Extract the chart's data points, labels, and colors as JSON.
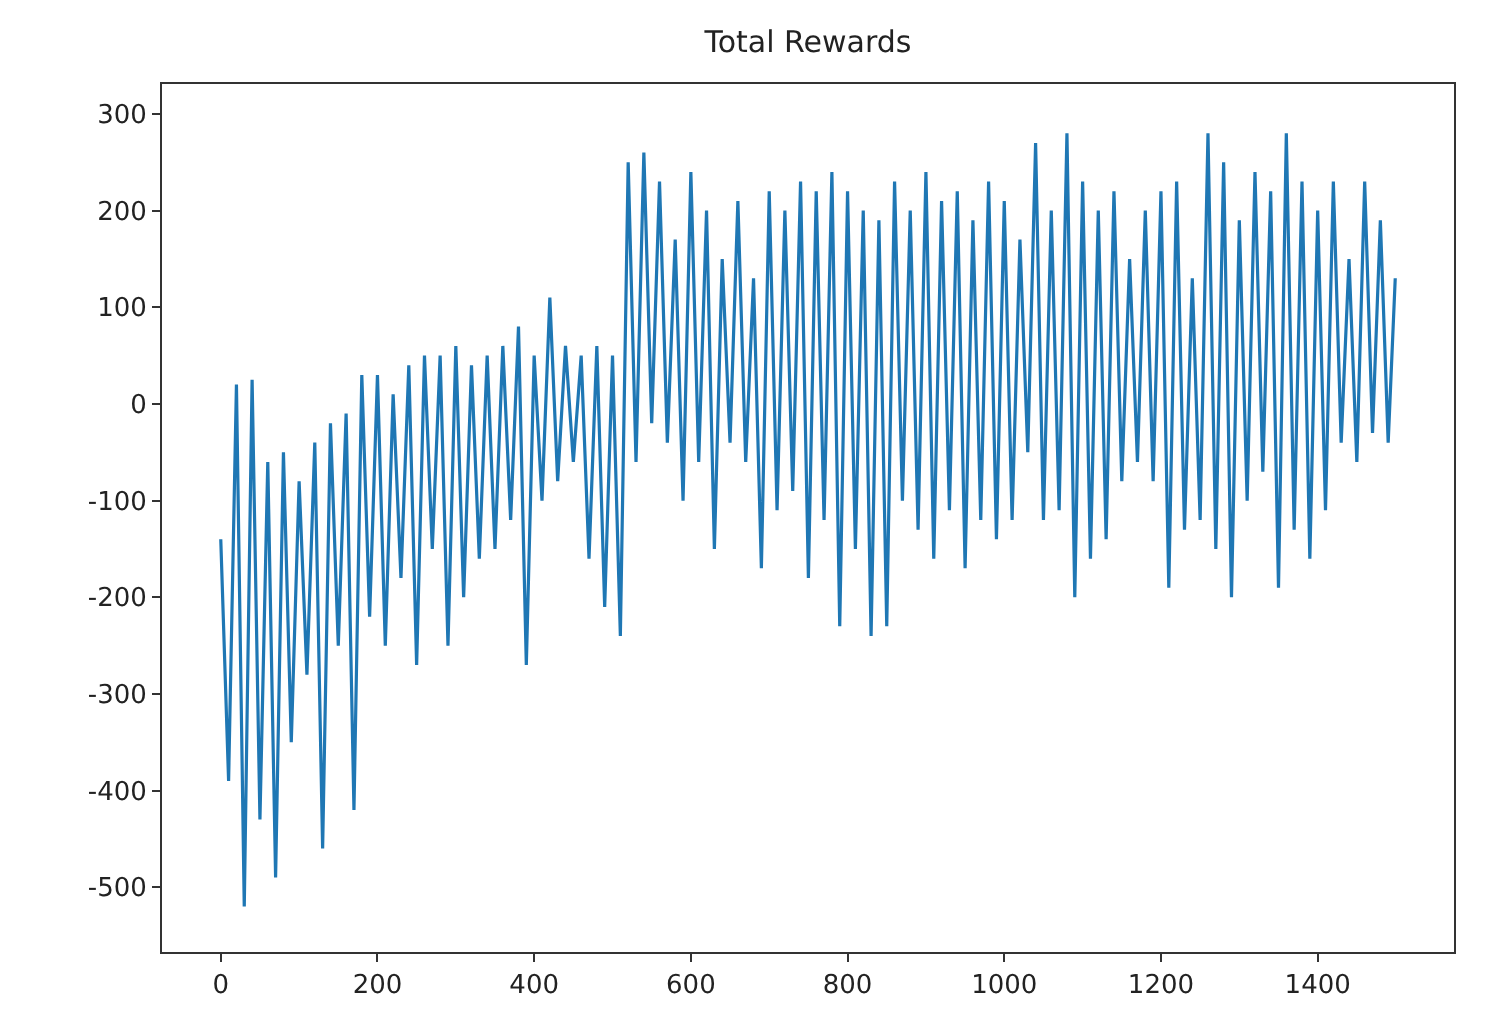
{
  "chart_data": {
    "type": "line",
    "title": "Total Rewards",
    "x": [
      0,
      10,
      20,
      30,
      40,
      50,
      60,
      70,
      80,
      90,
      100,
      110,
      120,
      130,
      140,
      150,
      160,
      170,
      180,
      190,
      200,
      210,
      220,
      230,
      240,
      250,
      260,
      270,
      280,
      290,
      300,
      310,
      320,
      330,
      340,
      350,
      360,
      370,
      380,
      390,
      400,
      410,
      420,
      430,
      440,
      450,
      460,
      470,
      480,
      490,
      500,
      510,
      520,
      530,
      540,
      550,
      560,
      570,
      580,
      590,
      600,
      610,
      620,
      630,
      640,
      650,
      660,
      670,
      680,
      690,
      700,
      710,
      720,
      730,
      740,
      750,
      760,
      770,
      780,
      790,
      800,
      810,
      820,
      830,
      840,
      850,
      860,
      870,
      880,
      890,
      900,
      910,
      920,
      930,
      940,
      950,
      960,
      970,
      980,
      990,
      1000,
      1010,
      1020,
      1030,
      1040,
      1050,
      1060,
      1070,
      1080,
      1090,
      1100,
      1110,
      1120,
      1130,
      1140,
      1150,
      1160,
      1170,
      1180,
      1190,
      1200,
      1210,
      1220,
      1230,
      1240,
      1250,
      1260,
      1270,
      1280,
      1290,
      1300,
      1310,
      1320,
      1330,
      1340,
      1350,
      1360,
      1370,
      1380,
      1390,
      1400,
      1410,
      1420,
      1430,
      1440,
      1450,
      1460,
      1470,
      1480,
      1490,
      1499
    ],
    "series": [
      {
        "color": "#1f77b4",
        "values": [
          -140,
          -390,
          20,
          -520,
          25,
          -430,
          -60,
          -490,
          -50,
          -350,
          -80,
          -280,
          -40,
          -460,
          -20,
          -250,
          -10,
          -420,
          30,
          -220,
          30,
          -250,
          10,
          -180,
          40,
          -270,
          50,
          -150,
          50,
          -250,
          60,
          -200,
          40,
          -160,
          50,
          -150,
          60,
          -120,
          80,
          -270,
          50,
          -100,
          110,
          -80,
          60,
          -60,
          50,
          -160,
          60,
          -210,
          50,
          -240,
          250,
          -60,
          260,
          -20,
          230,
          -40,
          170,
          -100,
          240,
          -60,
          200,
          -150,
          150,
          -40,
          210,
          -60,
          130,
          -170,
          220,
          -110,
          200,
          -90,
          230,
          -180,
          220,
          -120,
          240,
          -230,
          220,
          -150,
          200,
          -240,
          190,
          -230,
          230,
          -100,
          200,
          -130,
          240,
          -160,
          210,
          -110,
          220,
          -170,
          190,
          -120,
          230,
          -140,
          210,
          -120,
          170,
          -50,
          270,
          -120,
          200,
          -110,
          280,
          -200,
          230,
          -160,
          200,
          -140,
          220,
          -80,
          150,
          -60,
          200,
          -80,
          220,
          -190,
          230,
          -130,
          130,
          -120,
          280,
          -150,
          250,
          -200,
          190,
          -100,
          240,
          -70,
          220,
          -190,
          280,
          -130,
          230,
          -160,
          200,
          -110,
          230,
          -40,
          150,
          -60,
          230,
          -30,
          190,
          -40,
          130
        ]
      }
    ],
    "xlim": [
      -75,
      1574
    ],
    "ylim": [
      -567,
      331
    ],
    "xticks": [
      0,
      200,
      400,
      600,
      800,
      1000,
      1200,
      1400
    ],
    "yticks": [
      -500,
      -400,
      -300,
      -200,
      -100,
      0,
      100,
      200,
      300
    ],
    "legend": false,
    "marker": "none",
    "line_style": "solid"
  }
}
